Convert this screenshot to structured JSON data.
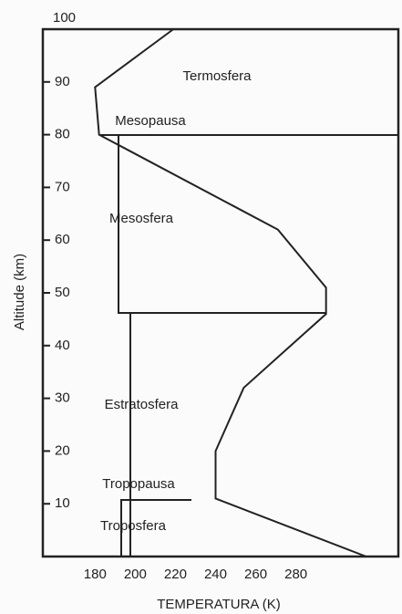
{
  "chart_data": {
    "type": "line",
    "x": [
      315,
      240,
      240,
      254,
      295,
      295,
      271,
      182,
      180,
      219
    ],
    "values": [
      0,
      11,
      20,
      32,
      46,
      51,
      62,
      80,
      89,
      100
    ],
    "color": "#222222",
    "xlabel": "TEMPERATURA (K)",
    "ylabel": "Altitude (km)",
    "xlim": [
      154,
      331
    ],
    "ylim": [
      0,
      100
    ],
    "xticks": [
      180,
      200,
      220,
      240,
      260,
      280
    ],
    "yticks": [
      10,
      20,
      30,
      40,
      50,
      60,
      70,
      80,
      90,
      100
    ],
    "annotations": [
      "Termosfera",
      "Mesopausa",
      "Mesosfera",
      "Estratosfera",
      "Tropopausa",
      "Troposfera"
    ]
  }
}
